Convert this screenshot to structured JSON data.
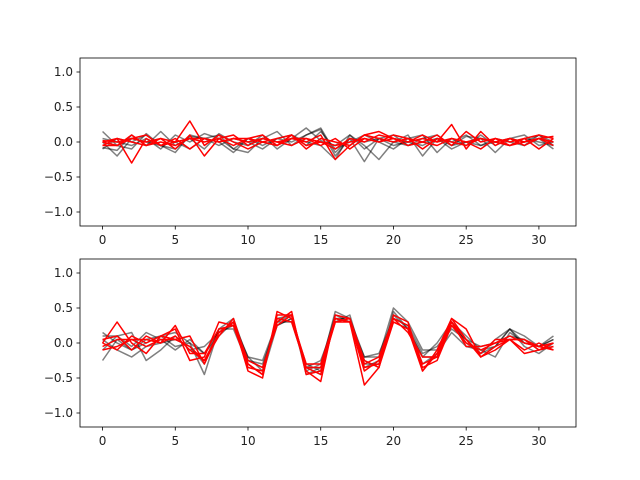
{
  "chart_data": [
    {
      "type": "line",
      "title": "",
      "xlabel": "",
      "ylabel": "",
      "xlim": [
        -1.55,
        32.55
      ],
      "ylim": [
        -1.2,
        1.2
      ],
      "xticks": [
        0,
        5,
        10,
        15,
        20,
        25,
        30
      ],
      "yticks": [
        -1.0,
        -0.5,
        0.0,
        0.5,
        1.0
      ],
      "ytick_labels": [
        "−1.0",
        "−0.5",
        "0.0",
        "0.5",
        "1.0"
      ],
      "grid": false,
      "legend": "none",
      "colors": {
        "black_series": "#000000",
        "red_series": "#ff0000"
      },
      "series": [
        {
          "color": "black",
          "values": [
            0.15,
            -0.05,
            -0.1,
            0.12,
            -0.05,
            -0.1,
            0.08,
            0.05,
            0.1,
            -0.1,
            -0.15,
            0.05,
            0.15,
            -0.05,
            0.1,
            0.18,
            -0.2,
            0.05,
            -0.28,
            0.05,
            0.1,
            -0.05,
            0.05,
            0.1,
            -0.05,
            0.08,
            0.05,
            -0.15,
            0.05,
            0.0,
            0.1,
            -0.05
          ]
        },
        {
          "color": "black",
          "values": [
            -0.08,
            -0.12,
            0.1,
            -0.05,
            0.15,
            -0.05,
            0.05,
            -0.1,
            0.12,
            0.0,
            -0.05,
            0.1,
            -0.1,
            0.05,
            0.2,
            0.02,
            -0.05,
            0.1,
            -0.05,
            -0.25,
            0.0,
            0.1,
            -0.2,
            0.05,
            0.0,
            0.1,
            -0.05,
            0.0,
            0.05,
            0.1,
            -0.05,
            0.0
          ]
        },
        {
          "color": "black",
          "values": [
            0.05,
            0.0,
            -0.05,
            0.05,
            -0.1,
            0.1,
            0.0,
            0.12,
            0.05,
            -0.1,
            0.05,
            -0.05,
            0.05,
            0.1,
            -0.05,
            0.15,
            -0.1,
            0.0,
            0.1,
            0.0,
            -0.1,
            0.05,
            0.1,
            -0.15,
            0.05,
            -0.05,
            0.1,
            -0.05,
            0.05,
            -0.05,
            0.05,
            -0.1
          ]
        },
        {
          "color": "black",
          "values": [
            -0.1,
            0.05,
            0.0,
            0.1,
            -0.05,
            0.0,
            -0.1,
            0.05,
            -0.05,
            0.05,
            0.0,
            -0.1,
            0.05,
            0.0,
            0.1,
            0.2,
            -0.15,
            0.05,
            0.0,
            0.05,
            -0.05,
            0.0,
            -0.05,
            0.05,
            -0.05,
            0.0,
            0.05,
            0.0,
            -0.05,
            0.05,
            0.0,
            -0.05
          ]
        },
        {
          "color": "black",
          "values": [
            0.0,
            -0.2,
            0.05,
            0.0,
            -0.05,
            -0.15,
            0.1,
            0.05,
            0.0,
            -0.15,
            0.05,
            0.0,
            -0.05,
            0.1,
            0.0,
            -0.05,
            -0.25,
            0.1,
            -0.1,
            0.05,
            0.0,
            -0.05,
            0.0,
            0.05,
            -0.1,
            0.0,
            -0.05,
            0.05,
            0.0,
            -0.05,
            0.1,
            0.0
          ]
        },
        {
          "color": "red",
          "values": [
            -0.05,
            0.05,
            -0.3,
            0.05,
            -0.05,
            0.0,
            0.3,
            -0.05,
            0.1,
            0.0,
            -0.1,
            0.0,
            0.05,
            0.1,
            -0.05,
            0.0,
            -0.1,
            0.05,
            0.0,
            0.1,
            0.05,
            0.0,
            0.1,
            0.0,
            0.25,
            -0.1,
            0.15,
            -0.05,
            0.05,
            -0.05,
            0.05,
            0.08
          ]
        },
        {
          "color": "red",
          "values": [
            0.0,
            -0.05,
            0.05,
            0.1,
            -0.05,
            0.05,
            -0.1,
            0.05,
            0.0,
            0.05,
            0.05,
            0.1,
            -0.05,
            0.05,
            0.0,
            0.1,
            -0.25,
            -0.05,
            0.1,
            0.15,
            0.05,
            -0.05,
            0.0,
            0.1,
            -0.05,
            0.15,
            0.0,
            0.05,
            -0.05,
            0.05,
            0.1,
            0.05
          ]
        },
        {
          "color": "red",
          "values": [
            0.0,
            0.05,
            0.0,
            -0.05,
            0.05,
            -0.1,
            0.1,
            -0.2,
            0.05,
            0.1,
            -0.05,
            0.05,
            0.0,
            -0.05,
            0.05,
            -0.05,
            0.05,
            -0.1,
            0.05,
            0.0,
            0.1,
            0.05,
            0.0,
            -0.05,
            0.05,
            0.0,
            -0.1,
            0.05,
            0.0,
            0.05,
            -0.1,
            0.05
          ]
        },
        {
          "color": "red",
          "values": [
            -0.05,
            -0.05,
            0.1,
            -0.05,
            0.0,
            -0.05,
            0.05,
            0.0,
            0.05,
            -0.05,
            0.05,
            0.0,
            -0.05,
            0.1,
            -0.1,
            0.05,
            0.0,
            -0.05,
            0.1,
            0.05,
            0.0,
            0.05,
            -0.1,
            0.05,
            0.0,
            -0.05,
            0.05,
            0.0,
            -0.05,
            0.0,
            0.05,
            -0.05
          ]
        },
        {
          "color": "red",
          "values": [
            0.02,
            0.0,
            0.05,
            0.0,
            0.05,
            0.0,
            0.05,
            0.05,
            0.0,
            0.05,
            0.0,
            0.05,
            0.0,
            0.05,
            0.05,
            0.0,
            -0.05,
            0.0,
            0.05,
            0.0,
            0.05,
            0.0,
            0.05,
            0.0,
            0.05,
            0.0,
            0.05,
            0.0,
            0.05,
            0.0,
            0.05,
            0.0
          ]
        }
      ]
    },
    {
      "type": "line",
      "title": "",
      "xlabel": "",
      "ylabel": "",
      "xlim": [
        -1.55,
        32.55
      ],
      "ylim": [
        -1.2,
        1.2
      ],
      "xticks": [
        0,
        5,
        10,
        15,
        20,
        25,
        30
      ],
      "yticks": [
        -1.0,
        -0.5,
        0.0,
        0.5,
        1.0
      ],
      "ytick_labels": [
        "−1.0",
        "−0.5",
        "0.0",
        "0.5",
        "1.0"
      ],
      "grid": false,
      "legend": "none",
      "colors": {
        "black_series": "#000000",
        "red_series": "#ff0000"
      },
      "series": [
        {
          "color": "black",
          "values": [
            0.1,
            0.1,
            -0.05,
            0.15,
            0.05,
            -0.1,
            0.05,
            -0.15,
            0.15,
            0.3,
            -0.2,
            -0.25,
            0.3,
            0.4,
            -0.4,
            -0.3,
            0.4,
            0.3,
            -0.2,
            -0.2,
            0.5,
            0.3,
            -0.1,
            -0.1,
            0.3,
            0.1,
            -0.1,
            -0.05,
            0.2,
            0.0,
            -0.05,
            0.05
          ]
        },
        {
          "color": "black",
          "values": [
            -0.25,
            0.05,
            -0.1,
            0.0,
            0.1,
            0.15,
            0.0,
            -0.45,
            0.2,
            0.35,
            -0.25,
            -0.35,
            0.35,
            0.4,
            -0.45,
            -0.35,
            0.45,
            0.35,
            -0.25,
            -0.35,
            0.45,
            0.2,
            -0.2,
            0.0,
            0.3,
            0.0,
            -0.15,
            0.05,
            0.2,
            0.1,
            -0.05,
            0.05
          ]
        },
        {
          "color": "black",
          "values": [
            0.05,
            -0.1,
            -0.2,
            -0.05,
            0.0,
            0.05,
            -0.05,
            -0.3,
            0.2,
            0.2,
            -0.3,
            -0.45,
            0.25,
            0.35,
            -0.3,
            -0.4,
            0.35,
            0.3,
            -0.35,
            -0.25,
            0.35,
            0.25,
            -0.3,
            -0.15,
            0.15,
            -0.05,
            -0.1,
            -0.2,
            0.15,
            0.0,
            -0.05,
            0.1
          ]
        },
        {
          "color": "black",
          "values": [
            -0.1,
            0.1,
            0.15,
            -0.25,
            -0.1,
            0.1,
            -0.1,
            -0.05,
            0.15,
            0.25,
            -0.2,
            -0.4,
            0.3,
            0.3,
            -0.35,
            -0.25,
            0.3,
            0.4,
            -0.3,
            -0.3,
            0.4,
            0.2,
            -0.2,
            -0.2,
            0.25,
            0.05,
            -0.15,
            -0.05,
            0.2,
            -0.05,
            -0.15,
            0.0
          ]
        },
        {
          "color": "black",
          "values": [
            0.15,
            0.0,
            -0.1,
            0.05,
            0.1,
            -0.05,
            0.0,
            -0.15,
            0.1,
            0.3,
            -0.25,
            -0.3,
            0.25,
            0.35,
            -0.35,
            -0.45,
            0.35,
            0.35,
            -0.2,
            -0.15,
            0.35,
            0.25,
            -0.15,
            -0.05,
            0.2,
            0.05,
            -0.05,
            0.0,
            0.1,
            0.05,
            -0.1,
            -0.05
          ]
        },
        {
          "color": "red",
          "values": [
            0.0,
            0.3,
            0.0,
            -0.15,
            0.1,
            0.2,
            -0.25,
            -0.2,
            0.3,
            0.25,
            -0.3,
            -0.45,
            0.4,
            0.4,
            -0.4,
            -0.55,
            0.4,
            0.35,
            -0.25,
            -0.35,
            0.4,
            0.3,
            -0.4,
            -0.1,
            0.35,
            0.05,
            -0.15,
            0.05,
            0.05,
            -0.15,
            -0.1,
            0.0
          ]
        },
        {
          "color": "red",
          "values": [
            -0.1,
            -0.05,
            0.05,
            0.05,
            0.0,
            0.1,
            -0.1,
            -0.25,
            0.15,
            0.3,
            -0.4,
            -0.5,
            0.45,
            0.35,
            -0.3,
            -0.3,
            0.35,
            0.3,
            -0.6,
            -0.35,
            0.3,
            0.2,
            -0.4,
            -0.15,
            0.35,
            0.2,
            -0.2,
            -0.1,
            0.05,
            -0.1,
            0.0,
            -0.1
          ]
        },
        {
          "color": "red",
          "values": [
            0.05,
            0.1,
            -0.1,
            0.1,
            0.0,
            0.25,
            -0.15,
            -0.15,
            0.2,
            0.25,
            -0.35,
            -0.4,
            0.3,
            0.45,
            -0.45,
            -0.4,
            0.3,
            0.3,
            -0.4,
            -0.25,
            0.35,
            0.15,
            -0.2,
            -0.2,
            0.3,
            -0.05,
            -0.05,
            0.0,
            0.1,
            0.0,
            -0.05,
            -0.1
          ]
        },
        {
          "color": "red",
          "values": [
            -0.05,
            0.05,
            0.05,
            -0.05,
            0.05,
            0.05,
            -0.05,
            -0.25,
            0.1,
            0.35,
            -0.3,
            -0.45,
            0.35,
            0.3,
            -0.35,
            -0.45,
            0.35,
            0.3,
            -0.3,
            -0.2,
            0.35,
            0.25,
            -0.3,
            -0.2,
            0.3,
            0.05,
            -0.2,
            -0.05,
            0.05,
            0.05,
            -0.05,
            0.0
          ]
        },
        {
          "color": "red",
          "values": [
            0.0,
            -0.1,
            0.1,
            0.0,
            0.1,
            0.05,
            0.1,
            -0.3,
            0.15,
            0.3,
            -0.25,
            -0.35,
            0.25,
            0.4,
            -0.35,
            -0.35,
            0.3,
            0.35,
            -0.35,
            -0.3,
            0.3,
            0.2,
            -0.35,
            -0.25,
            0.25,
            0.0,
            -0.1,
            0.0,
            0.05,
            0.05,
            -0.1,
            -0.05
          ]
        }
      ]
    }
  ]
}
